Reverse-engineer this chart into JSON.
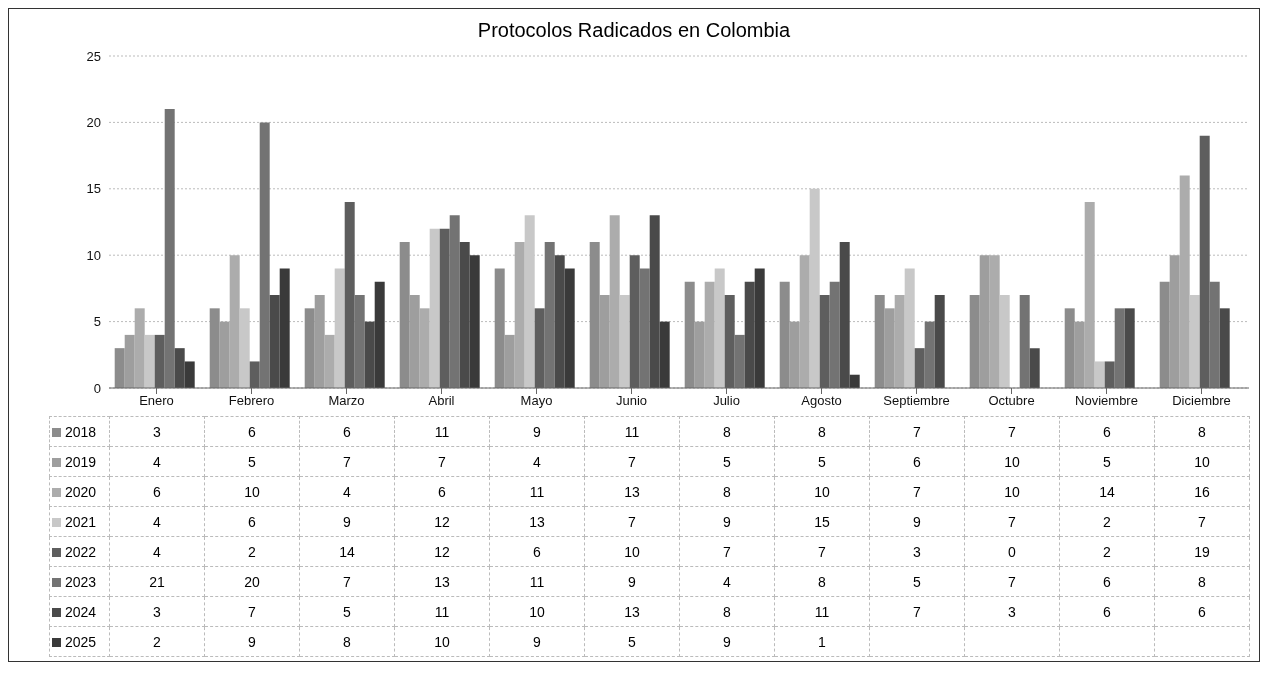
{
  "chart_data": {
    "type": "bar",
    "title": "Protocolos Radicados en Colombia",
    "categories": [
      "Enero",
      "Febrero",
      "Marzo",
      "Abril",
      "Mayo",
      "Junio",
      "Julio",
      "Agosto",
      "Septiembre",
      "Octubre",
      "Noviembre",
      "Diciembre"
    ],
    "series": [
      {
        "name": "2018",
        "color": "#8c8c8c",
        "values": [
          3,
          6,
          6,
          11,
          9,
          11,
          8,
          8,
          7,
          7,
          6,
          8
        ]
      },
      {
        "name": "2019",
        "color": "#9e9e9e",
        "values": [
          4,
          5,
          7,
          7,
          4,
          7,
          5,
          5,
          6,
          10,
          5,
          10
        ]
      },
      {
        "name": "2020",
        "color": "#acacac",
        "values": [
          6,
          10,
          4,
          6,
          11,
          13,
          8,
          10,
          7,
          10,
          14,
          16
        ]
      },
      {
        "name": "2021",
        "color": "#c8c8c8",
        "values": [
          4,
          6,
          9,
          12,
          13,
          7,
          9,
          15,
          9,
          7,
          2,
          7
        ]
      },
      {
        "name": "2022",
        "color": "#5e5e5e",
        "values": [
          4,
          2,
          14,
          12,
          6,
          10,
          7,
          7,
          3,
          0,
          2,
          19
        ]
      },
      {
        "name": "2023",
        "color": "#737373",
        "values": [
          21,
          20,
          7,
          13,
          11,
          9,
          4,
          8,
          5,
          7,
          6,
          8
        ]
      },
      {
        "name": "2024",
        "color": "#4a4a4a",
        "values": [
          3,
          7,
          5,
          11,
          10,
          13,
          8,
          11,
          7,
          3,
          6,
          6
        ]
      },
      {
        "name": "2025",
        "color": "#3a3a3a",
        "values": [
          2,
          9,
          8,
          10,
          9,
          5,
          9,
          1,
          null,
          null,
          null,
          null
        ]
      }
    ],
    "ylim": [
      0,
      25
    ],
    "yticks": [
      0,
      5,
      10,
      15,
      20,
      25
    ],
    "grid": "y",
    "legend": "bottom",
    "data_labels": true
  }
}
